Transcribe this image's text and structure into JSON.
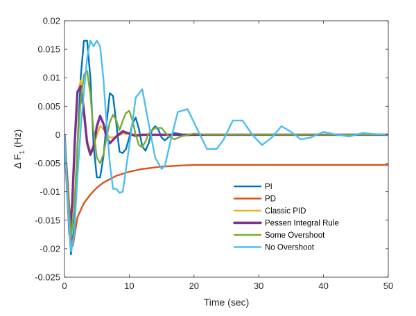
{
  "chart_data": {
    "type": "line",
    "title": "",
    "xlabel": "Time (sec)",
    "ylabel_parts": [
      "Δ F",
      "1",
      " (Hz)"
    ],
    "xlim": [
      0,
      50
    ],
    "ylim": [
      -0.025,
      0.02
    ],
    "x_ticks": [
      0,
      10,
      20,
      30,
      40,
      50
    ],
    "x_tick_labels": [
      "0",
      "10",
      "20",
      "30",
      "40",
      "50"
    ],
    "y_ticks": [
      -0.025,
      -0.02,
      -0.015,
      -0.01,
      -0.005,
      0,
      0.005,
      0.01,
      0.015,
      0.02
    ],
    "y_tick_labels": [
      "-0.025",
      "-0.02",
      "-0.015",
      "-0.01",
      "-0.005",
      "0",
      "0.005",
      "0.01",
      "0.015",
      "0.02"
    ],
    "grid": false,
    "legend_position": "lower-right",
    "series": [
      {
        "name": "PI",
        "color": "#0072BD",
        "x": [
          0,
          0.5,
          1.0,
          1.5,
          2.0,
          2.5,
          3.0,
          3.5,
          4.0,
          4.5,
          5.0,
          5.5,
          6.0,
          6.5,
          7.0,
          7.5,
          8.0,
          8.5,
          9.0,
          9.5,
          10.0,
          10.5,
          11.0,
          11.5,
          12.0,
          12.5,
          13.0,
          13.5,
          14.0,
          14.5,
          15.0,
          15.5,
          16.0,
          17.0,
          18.0,
          19.0,
          20.0,
          22.0,
          24.0,
          27.0,
          30.0,
          35.0,
          40.0,
          45.0,
          50.0
        ],
        "y": [
          0,
          -0.012,
          -0.021,
          -0.016,
          -0.002,
          0.01,
          0.0165,
          0.0165,
          0.01,
          -0.002,
          -0.0075,
          -0.0075,
          -0.004,
          0.002,
          0.0073,
          0.0068,
          0.002,
          -0.003,
          -0.0032,
          -0.0025,
          -0.0005,
          0.002,
          0.003,
          0.001,
          -0.002,
          -0.0028,
          -0.0015,
          0.0008,
          0.0015,
          0.0009,
          -0.0005,
          -0.001,
          -0.0005,
          0.0003,
          0.0001,
          -0.0001,
          0,
          0,
          0,
          0,
          0,
          0,
          0,
          0,
          0
        ]
      },
      {
        "name": "PD",
        "color": "#D95319",
        "x": [
          0,
          0.5,
          1.0,
          1.3,
          2.0,
          3.0,
          4.0,
          5.0,
          6.0,
          8.0,
          10.0,
          12.0,
          15.0,
          18.0,
          20.0,
          25.0,
          30.0,
          40.0,
          50.0
        ],
        "y": [
          0,
          -0.008,
          -0.0175,
          -0.0195,
          -0.0145,
          -0.012,
          -0.0105,
          -0.0093,
          -0.0084,
          -0.0072,
          -0.0065,
          -0.006,
          -0.0056,
          -0.0054,
          -0.0053,
          -0.0053,
          -0.0053,
          -0.0053,
          -0.0053
        ]
      },
      {
        "name": "Classic PID",
        "color": "#EDB120",
        "x": [
          0,
          0.4,
          0.8,
          1.2,
          1.6,
          2.0,
          2.5,
          3.0,
          3.5,
          4.0,
          4.5,
          5.0,
          5.5,
          6.0,
          7.0,
          8.0,
          9.0,
          10.0,
          12.0,
          15.0,
          20.0,
          30.0,
          50.0
        ],
        "y": [
          0,
          -0.009,
          -0.0165,
          -0.012,
          -0.002,
          0.007,
          0.0095,
          0.005,
          -0.001,
          -0.003,
          -0.002,
          0,
          0.0015,
          0.001,
          -0.0005,
          -0.0004,
          0.0002,
          0.0001,
          0,
          0,
          0,
          0,
          0
        ]
      },
      {
        "name": "Pessen Integral Rule",
        "color": "#7E2F8E",
        "x": [
          0,
          0.4,
          0.8,
          1.2,
          1.6,
          2.0,
          2.5,
          3.0,
          3.5,
          4.0,
          4.5,
          5.0,
          5.5,
          6.0,
          6.5,
          7.0,
          8.0,
          9.0,
          10.0,
          11.0,
          12.0,
          14.0,
          17.0,
          20.0,
          30.0,
          50.0
        ],
        "y": [
          0,
          -0.009,
          -0.0175,
          -0.012,
          -0.001,
          0.0075,
          0.0085,
          0.004,
          -0.0015,
          -0.0035,
          -0.002,
          0.0015,
          0.0033,
          0.002,
          -0.0005,
          -0.0015,
          -0.0003,
          0.0006,
          0.0002,
          -0.0002,
          0,
          0,
          0,
          0,
          0,
          0
        ]
      },
      {
        "name": "Some Overshoot",
        "color": "#77AC30",
        "x": [
          0,
          0.5,
          1.0,
          1.5,
          2.0,
          2.5,
          3.0,
          3.5,
          4.0,
          4.5,
          5.0,
          5.5,
          6.0,
          6.5,
          7.0,
          7.5,
          8.0,
          8.5,
          9.0,
          9.5,
          10.0,
          10.5,
          11.0,
          11.5,
          12.0,
          12.5,
          13.0,
          14.0,
          15.0,
          16.0,
          17.0,
          18.0,
          20.0,
          22.0,
          25.0,
          30.0,
          50.0
        ],
        "y": [
          0,
          -0.01,
          -0.018,
          -0.013,
          -0.002,
          0.006,
          0.0105,
          0.0112,
          0.007,
          0.0005,
          -0.004,
          -0.005,
          -0.0035,
          -0.0005,
          0.0022,
          0.0035,
          0.0025,
          0.0008,
          0.0025,
          0.0038,
          0.0042,
          0.0025,
          0,
          -0.0018,
          -0.0022,
          -0.0012,
          0.0002,
          0.0012,
          0.0012,
          -0.0002,
          -0.0008,
          -0.0003,
          0.0002,
          0,
          0,
          0,
          0
        ]
      },
      {
        "name": "No Overshoot",
        "color": "#4DBEEE",
        "x": [
          0,
          0.5,
          1.0,
          1.5,
          2.0,
          2.5,
          3.0,
          3.5,
          4.0,
          4.5,
          5.0,
          5.5,
          6.0,
          6.5,
          7.0,
          7.5,
          8.0,
          8.5,
          9.0,
          10.0,
          11.0,
          12.0,
          13.0,
          14.0,
          15.0,
          15.5,
          16.5,
          17.5,
          19.0,
          20.5,
          22.0,
          23.5,
          24.5,
          26.0,
          27.5,
          29.0,
          30.5,
          32.0,
          33.5,
          35.0,
          36.5,
          38.0,
          40.0,
          42.0,
          44.0,
          46.0,
          48.0,
          50.0
        ],
        "y": [
          0,
          -0.012,
          -0.0205,
          -0.0175,
          -0.0075,
          0.001,
          0.0075,
          0.0135,
          0.0165,
          0.0155,
          0.0165,
          0.0155,
          0.01,
          0.002,
          -0.005,
          -0.0095,
          -0.0095,
          -0.0102,
          -0.01,
          -0.002,
          0.0065,
          0.008,
          0.002,
          -0.004,
          -0.006,
          -0.0055,
          -0.0005,
          0.004,
          0.0045,
          0.001,
          -0.0025,
          -0.0025,
          -0.001,
          0.0025,
          0.0025,
          0,
          -0.0018,
          -0.0005,
          0.0015,
          0.0005,
          -0.0008,
          -0.0005,
          0.0005,
          0,
          -0.0003,
          0.0003,
          0.0001,
          0
        ]
      }
    ]
  }
}
